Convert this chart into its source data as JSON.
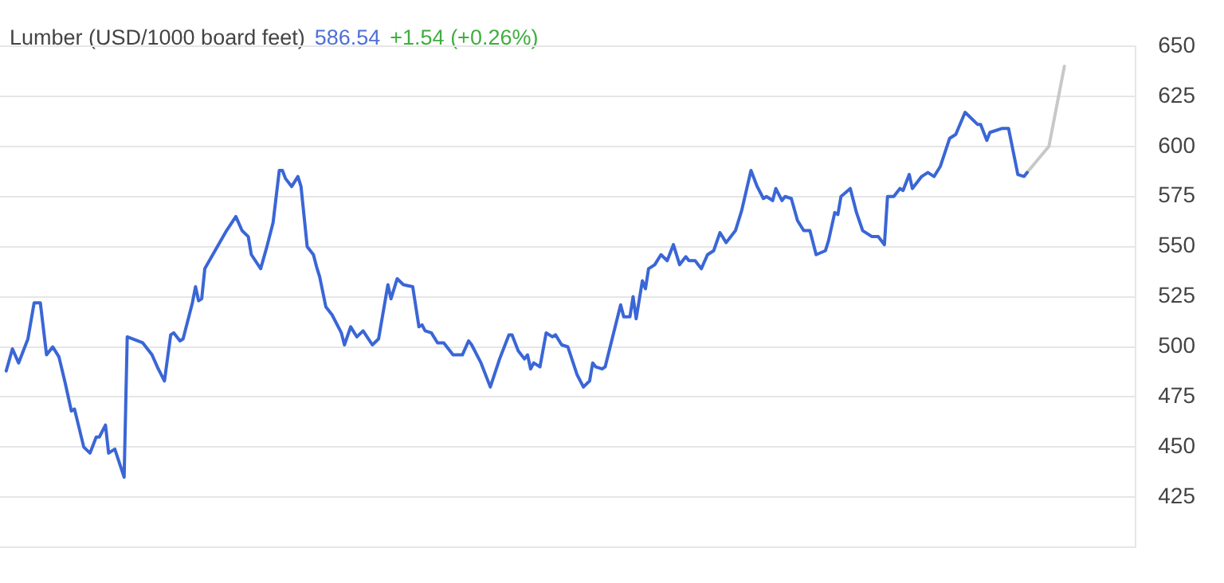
{
  "chart_data": {
    "type": "line",
    "title": "Lumber (USD/1000 board feet)",
    "annotations": [
      "586.54",
      "+1.54 (+0.26%)"
    ],
    "categories": [
      null,
      null,
      null,
      null,
      null,
      null,
      null,
      null,
      null,
      null,
      null,
      null,
      null,
      null,
      null,
      null,
      null,
      null,
      null,
      null,
      null,
      null,
      null,
      null,
      null,
      null,
      null,
      null,
      null,
      null,
      null,
      null,
      null,
      null,
      null,
      null,
      null,
      null,
      null,
      null,
      null,
      null,
      null,
      null,
      null,
      null,
      null,
      null,
      null,
      null,
      null,
      null,
      null,
      null,
      null,
      null,
      null,
      null,
      null,
      null,
      null,
      null,
      null,
      null,
      null,
      null,
      null,
      null,
      null,
      null,
      null,
      null,
      null,
      null,
      null,
      null,
      null,
      null,
      null,
      null,
      null,
      null,
      null,
      null,
      null,
      null,
      null,
      null,
      null,
      null,
      null,
      null,
      null,
      null,
      null,
      null,
      null,
      null,
      null,
      null,
      null,
      null,
      null,
      null,
      null,
      null,
      null,
      null,
      null,
      null,
      null,
      null,
      null,
      null,
      null,
      null,
      null,
      null,
      null,
      null,
      null,
      null,
      null,
      null,
      null,
      null,
      null,
      null,
      null,
      null,
      null,
      null,
      null,
      null,
      null,
      null,
      null,
      null,
      null,
      null,
      null,
      null,
      null,
      null,
      null,
      null,
      null,
      null,
      null,
      null,
      null,
      null,
      null,
      null,
      null,
      null,
      null,
      null,
      null,
      null,
      null,
      null,
      null,
      null,
      null,
      null,
      null,
      null,
      null,
      null,
      null,
      null,
      null,
      null,
      null,
      null,
      null,
      null,
      null,
      null,
      null,
      null,
      null,
      null,
      null,
      null,
      null,
      null,
      null,
      null,
      null,
      null,
      null,
      null,
      null,
      null,
      null,
      null,
      null,
      null,
      null,
      null,
      null,
      null,
      null,
      null,
      null,
      null,
      null,
      null,
      null,
      null,
      null,
      null,
      null,
      null,
      null,
      null,
      null,
      null,
      null,
      null,
      null,
      null,
      null,
      null,
      null,
      null,
      null,
      null,
      null,
      null,
      null,
      null,
      null,
      null,
      null,
      null,
      null,
      null,
      null,
      null,
      null,
      null,
      null,
      null,
      null,
      null,
      null,
      null,
      null,
      null,
      null,
      null,
      null,
      null,
      null,
      null,
      null,
      null,
      null,
      null,
      null,
      null,
      null,
      null,
      null,
      null,
      null,
      null,
      null,
      null,
      null,
      null,
      null,
      null,
      null,
      null,
      null,
      null,
      null,
      null,
      null,
      null,
      null,
      null,
      null,
      null,
      null,
      null,
      null,
      null,
      null,
      null,
      null,
      null,
      null,
      null,
      null,
      null,
      null,
      null,
      null,
      null,
      null,
      null,
      null,
      null,
      null,
      null,
      null,
      null,
      null,
      null,
      null,
      null,
      null,
      null,
      null,
      null,
      null,
      null,
      null,
      null,
      null,
      null,
      null,
      null,
      null,
      null,
      null,
      null,
      null,
      null,
      null,
      null,
      null,
      null,
      null,
      null,
      null,
      null,
      null,
      null,
      null,
      null,
      null,
      null,
      null,
      null,
      null,
      null,
      null,
      null,
      null,
      null,
      null,
      null,
      null,
      null,
      null,
      null,
      null,
      null,
      null,
      null,
      null
    ],
    "series": [
      {
        "color": "#3a66d6",
        "values": [
          null,
          null,
          488,
          null,
          499,
          null,
          492,
          null,
          null,
          504,
          null,
          522,
          null,
          522,
          null,
          496,
          null,
          500,
          null,
          495,
          null,
          482,
          null,
          468,
          469,
          null,
          null,
          450,
          null,
          447,
          null,
          455,
          455,
          null,
          461,
          447,
          null,
          449,
          null,
          null,
          435,
          505,
          null,
          null,
          null,
          null,
          502,
          null,
          null,
          496,
          null,
          489,
          null,
          483,
          null,
          506,
          507,
          null,
          503,
          504,
          null,
          null,
          522,
          530,
          523,
          524,
          539,
          null,
          null,
          null,
          null,
          null,
          null,
          558,
          null,
          null,
          565,
          null,
          558,
          null,
          555,
          546,
          null,
          null,
          539,
          null,
          550,
          null,
          562,
          null,
          588,
          588,
          584,
          null,
          580,
          null,
          585,
          580,
          null,
          550,
          null,
          546,
          540,
          535,
          null,
          520,
          null,
          516,
          null,
          null,
          507,
          501,
          null,
          510,
          null,
          505,
          null,
          508,
          null,
          null,
          501,
          null,
          504,
          null,
          null,
          531,
          524,
          null,
          534,
          null,
          531,
          null,
          null,
          530,
          null,
          510,
          511,
          508,
          null,
          507,
          null,
          502,
          null,
          502,
          null,
          null,
          496,
          null,
          null,
          496,
          null,
          503,
          501,
          null,
          null,
          492,
          null,
          null,
          480,
          null,
          null,
          494,
          null,
          null,
          506,
          506,
          null,
          498,
          null,
          494,
          496,
          489,
          492,
          null,
          490,
          null,
          507,
          null,
          505,
          506,
          null,
          501,
          null,
          500,
          null,
          null,
          486,
          null,
          480,
          null,
          483,
          492,
          490,
          null,
          489,
          490,
          null,
          null,
          null,
          null,
          521,
          515,
          null,
          515,
          525,
          514,
          null,
          533,
          529,
          539,
          null,
          541,
          null,
          546,
          null,
          543,
          null,
          551,
          null,
          541,
          null,
          545,
          543,
          null,
          543,
          null,
          539,
          null,
          546,
          null,
          548,
          null,
          557,
          null,
          552,
          null,
          null,
          558,
          null,
          568,
          null,
          null,
          588,
          null,
          580,
          null,
          574,
          575,
          null,
          573,
          579,
          null,
          573,
          575,
          null,
          574,
          null,
          563,
          null,
          558,
          null,
          558,
          null,
          546,
          null,
          null,
          548,
          553,
          null,
          567,
          566,
          575,
          null,
          null,
          579,
          null,
          567,
          null,
          558,
          557,
          null,
          555,
          null,
          555,
          null,
          551,
          575,
          null,
          575,
          null,
          579,
          578,
          null,
          586,
          579,
          null,
          null,
          585,
          null,
          587,
          null,
          585,
          null,
          590,
          null,
          null,
          604,
          null,
          606,
          null,
          null,
          617,
          null,
          null,
          null,
          611,
          611,
          null,
          603,
          607,
          null,
          null,
          null,
          609,
          null,
          609,
          null,
          null,
          586,
          null,
          585,
          587,
          null,
          null,
          null,
          null,
          null,
          null,
          null,
          null,
          null,
          null,
          null,
          null,
          null,
          null,
          null,
          null,
          null,
          null,
          null,
          null,
          null,
          null,
          null,
          null,
          null,
          null,
          null,
          null,
          null,
          null,
          null,
          null,
          null,
          null,
          null
        ]
      },
      {
        "color": "#c8c8c8",
        "values": [
          null,
          null,
          null,
          null,
          null,
          null,
          null,
          null,
          null,
          null,
          null,
          null,
          null,
          null,
          null,
          null,
          null,
          null,
          null,
          null,
          null,
          null,
          null,
          null,
          null,
          null,
          null,
          null,
          null,
          null,
          null,
          null,
          null,
          null,
          null,
          null,
          null,
          null,
          null,
          null,
          null,
          null,
          null,
          null,
          null,
          null,
          null,
          null,
          null,
          null,
          null,
          null,
          null,
          null,
          null,
          null,
          null,
          null,
          null,
          null,
          null,
          null,
          null,
          null,
          null,
          null,
          null,
          null,
          null,
          null,
          null,
          null,
          null,
          null,
          null,
          null,
          null,
          null,
          null,
          null,
          null,
          null,
          null,
          null,
          null,
          null,
          null,
          null,
          null,
          null,
          null,
          null,
          null,
          null,
          null,
          null,
          null,
          null,
          null,
          null,
          null,
          null,
          null,
          null,
          null,
          null,
          null,
          null,
          null,
          null,
          null,
          null,
          null,
          null,
          null,
          null,
          null,
          null,
          null,
          null,
          null,
          null,
          null,
          null,
          null,
          null,
          null,
          null,
          null,
          null,
          null,
          null,
          null,
          null,
          null,
          null,
          null,
          null,
          null,
          null,
          null,
          null,
          null,
          null,
          null,
          null,
          null,
          null,
          null,
          null,
          null,
          null,
          null,
          null,
          null,
          null,
          null,
          null,
          null,
          null,
          null,
          null,
          null,
          null,
          null,
          null,
          null,
          null,
          null,
          null,
          null,
          null,
          null,
          null,
          null,
          null,
          null,
          null,
          null,
          null,
          null,
          null,
          null,
          null,
          null,
          null,
          null,
          null,
          null,
          null,
          null,
          null,
          null,
          null,
          null,
          null,
          null,
          null,
          null,
          null,
          null,
          null,
          null,
          null,
          null,
          null,
          null,
          null,
          null,
          null,
          null,
          null,
          null,
          null,
          null,
          null,
          null,
          null,
          null,
          null,
          null,
          null,
          null,
          null,
          null,
          null,
          null,
          null,
          null,
          null,
          null,
          null,
          null,
          null,
          null,
          null,
          null,
          null,
          null,
          null,
          null,
          null,
          null,
          null,
          null,
          null,
          null,
          null,
          null,
          null,
          null,
          null,
          null,
          null,
          null,
          null,
          null,
          null,
          null,
          null,
          null,
          null,
          null,
          null,
          null,
          null,
          null,
          null,
          null,
          null,
          null,
          null,
          null,
          null,
          null,
          null,
          null,
          null,
          null,
          null,
          null,
          null,
          null,
          null,
          null,
          null,
          null,
          null,
          null,
          null,
          null,
          null,
          null,
          null,
          null,
          null,
          null,
          null,
          null,
          null,
          null,
          null,
          null,
          null,
          null,
          null,
          null,
          null,
          null,
          null,
          null,
          null,
          null,
          null,
          null,
          null,
          null,
          null,
          null,
          null,
          null,
          null,
          null,
          null,
          null,
          null,
          null,
          null,
          null,
          null,
          null,
          587,
          null,
          null,
          null,
          null,
          null,
          null,
          600,
          null,
          null,
          null,
          null,
          640,
          null,
          null,
          null,
          null,
          null,
          null,
          null,
          null,
          null,
          null,
          null,
          null,
          null,
          null,
          null,
          null,
          null,
          null,
          null,
          null,
          null,
          null,
          null
        ]
      }
    ],
    "ylim": [
      400,
      650
    ],
    "yticks": [
      {
        "value": 400,
        "label": null
      },
      425,
      450,
      475,
      500,
      525,
      550,
      575,
      600,
      625,
      650
    ],
    "grid": "y",
    "legend": false,
    "marker": "none",
    "line_style": "solid",
    "tick_labels": "y"
  }
}
